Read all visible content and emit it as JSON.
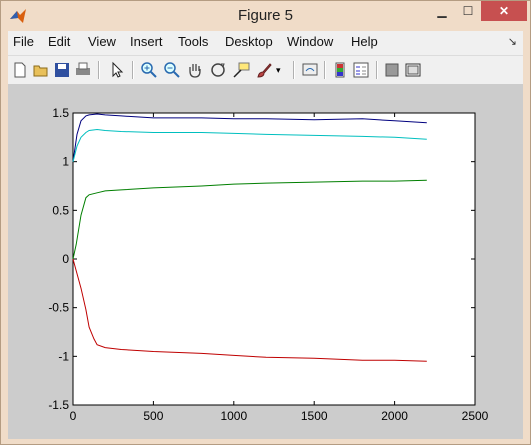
{
  "window": {
    "title": "Figure 5"
  },
  "menu": [
    "File",
    "Edit",
    "View",
    "Insert",
    "Tools",
    "Desktop",
    "Window",
    "Help"
  ],
  "toolbar": [
    "new-figure",
    "open-file",
    "save",
    "print",
    "edit-plot-arrow",
    "zoom-in",
    "zoom-out",
    "pan",
    "rotate-3d",
    "data-cursor",
    "brush",
    "link-plot",
    "colorbar",
    "legend",
    "hide-plot-tools",
    "show-plot-tools"
  ],
  "chart_data": {
    "type": "line",
    "xlim": [
      0,
      2500
    ],
    "ylim": [
      -1.5,
      1.5
    ],
    "xticks": [
      "0",
      "500",
      "1000",
      "1500",
      "2000",
      "2500"
    ],
    "yticks": [
      "1.5",
      "1",
      "0.5",
      "0",
      "-0.5",
      "-1",
      "-1.5"
    ],
    "colors": [
      "#00007f",
      "#00bfbf",
      "#007f00",
      "#bf0000"
    ],
    "series": [
      {
        "x": [
          0,
          25,
          50,
          80,
          100,
          150,
          200,
          300,
          500,
          800,
          1000,
          1200,
          1500,
          1800,
          2000,
          2200
        ],
        "values": [
          1.0,
          1.28,
          1.42,
          1.47,
          1.48,
          1.49,
          1.48,
          1.47,
          1.45,
          1.45,
          1.44,
          1.44,
          1.43,
          1.44,
          1.42,
          1.4
        ]
      },
      {
        "x": [
          0,
          25,
          50,
          80,
          100,
          150,
          200,
          300,
          500,
          800,
          1000,
          1200,
          1500,
          1800,
          2000,
          2200
        ],
        "values": [
          1.0,
          1.16,
          1.25,
          1.3,
          1.32,
          1.33,
          1.32,
          1.31,
          1.3,
          1.3,
          1.29,
          1.28,
          1.27,
          1.26,
          1.25,
          1.23
        ]
      },
      {
        "x": [
          0,
          20,
          50,
          80,
          100,
          150,
          200,
          300,
          500,
          800,
          1000,
          1200,
          1500,
          1800,
          2000,
          2200
        ],
        "values": [
          0.0,
          0.15,
          0.45,
          0.63,
          0.66,
          0.68,
          0.7,
          0.71,
          0.73,
          0.75,
          0.77,
          0.78,
          0.79,
          0.8,
          0.8,
          0.81
        ]
      },
      {
        "x": [
          0,
          20,
          50,
          80,
          100,
          130,
          150,
          200,
          300,
          500,
          800,
          1000,
          1200,
          1500,
          1800,
          2000,
          2200
        ],
        "values": [
          0.0,
          -0.12,
          -0.3,
          -0.52,
          -0.7,
          -0.82,
          -0.88,
          -0.91,
          -0.93,
          -0.95,
          -0.97,
          -0.99,
          -1.01,
          -1.02,
          -1.04,
          -1.04,
          -1.05
        ]
      }
    ]
  }
}
